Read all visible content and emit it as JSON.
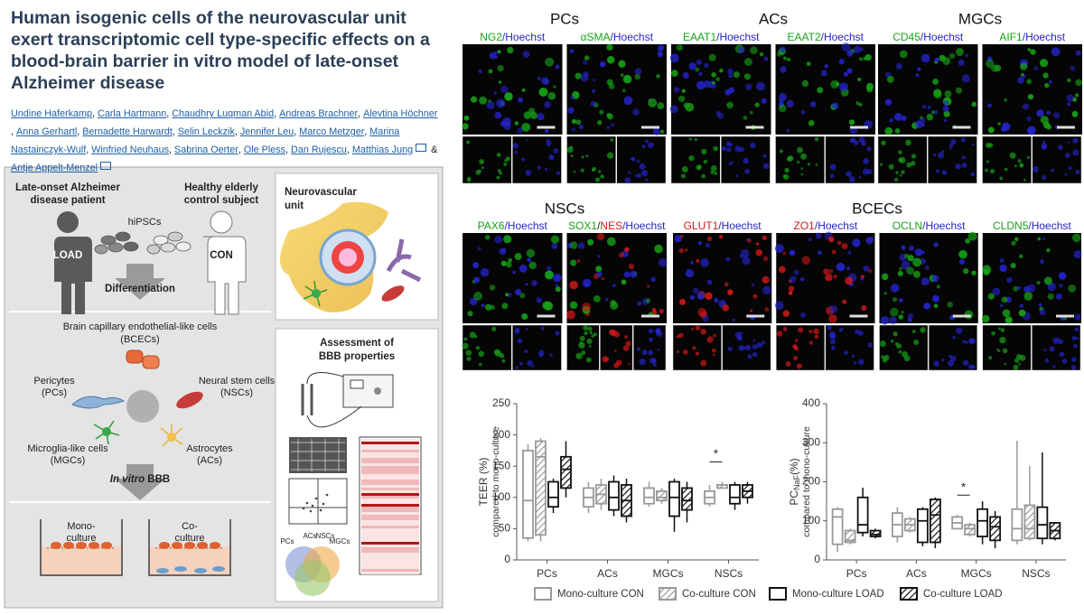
{
  "header": {
    "title": "Human isogenic cells of the neurovascular unit exert transcriptomic cell type-specific effects on a blood-brain barrier in vitro model of late-onset Alzheimer disease",
    "authors": [
      "Undine Haferkamp",
      "Carla Hartmann",
      "Chaudhry Luqman Abid",
      "Andreas Brachner",
      "Alevtina Höchner",
      "Anna Gerhartl",
      "Bernadette Harwardt",
      "Selin Leckzik",
      "Jennifer Leu",
      "Marco Metzger",
      "Marina Nastainczyk-Wulf",
      "Winfried Neuhaus",
      "Sabrina Oerter",
      "Ole Pless",
      "Dan Rujescu",
      "Matthias Jung",
      "Antje Appelt-Menzel"
    ]
  },
  "graphical_abstract": {
    "patient": [
      "Late-onset Alzheimer",
      "disease patient"
    ],
    "control": [
      "Healthy elderly",
      "control subject"
    ],
    "ipsc": "hiPSCs",
    "load_tag": "LOAD",
    "con_tag": "CON",
    "differentiation": "Differentiation",
    "bcecs": [
      "Brain capillary endothelial-like cells",
      "(BCECs)"
    ],
    "pcs": [
      "Pericytes",
      "(PCs)"
    ],
    "nscs": [
      "Neural stem cells",
      "(NSCs)"
    ],
    "mgcs": [
      "Microglia-like cells",
      "(MGCs)"
    ],
    "acs": [
      "Astrocytes",
      "(ACs)"
    ],
    "bbb": [
      {
        "text": "In vitro",
        "italic": true
      },
      {
        "text": " BBB"
      }
    ],
    "mono": [
      "Mono-",
      "culture"
    ],
    "co": [
      "Co-",
      "culture"
    ],
    "nvu": [
      "Neurovascular",
      "unit"
    ],
    "assessment": [
      "Assessment of",
      "BBB properties"
    ],
    "venn": [
      "PCs",
      "ACs",
      "NSCs",
      "MGCs"
    ]
  },
  "micrographs": [
    [
      {
        "title": "PCs",
        "images": [
          {
            "label": [
              {
                "text": "NG2",
                "color": "#17a317"
              },
              {
                "text": "/Hoechst",
                "color": "#2424c8"
              }
            ]
          },
          {
            "label": [
              {
                "text": "αSMA",
                "color": "#17a317"
              },
              {
                "text": "/Hoechst",
                "color": "#2424c8"
              }
            ]
          }
        ]
      },
      {
        "title": "ACs",
        "images": [
          {
            "label": [
              {
                "text": "EAAT1",
                "color": "#17a317"
              },
              {
                "text": "/Hoechst",
                "color": "#2424c8"
              }
            ]
          },
          {
            "label": [
              {
                "text": "EAAT2",
                "color": "#17a317"
              },
              {
                "text": "/Hoechst",
                "color": "#2424c8"
              }
            ]
          }
        ]
      },
      {
        "title": "MGCs",
        "images": [
          {
            "label": [
              {
                "text": "CD45",
                "color": "#17a317"
              },
              {
                "text": "/Hoechst",
                "color": "#2424c8"
              }
            ]
          },
          {
            "label": [
              {
                "text": "AIF1",
                "color": "#17a317"
              },
              {
                "text": "/Hoechst",
                "color": "#2424c8"
              }
            ]
          }
        ]
      }
    ],
    [
      {
        "title": "NSCs",
        "images": [
          {
            "label": [
              {
                "text": "PAX6",
                "color": "#17a317"
              },
              {
                "text": "/Hoechst",
                "color": "#2424c8"
              }
            ]
          },
          {
            "label": [
              {
                "text": "SOX1",
                "color": "#17a317"
              },
              {
                "text": "/",
                "color": "#222222"
              },
              {
                "text": "NES",
                "color": "#d01818"
              },
              {
                "text": "/Hoechst",
                "color": "#2424c8"
              }
            ]
          }
        ]
      },
      {
        "title": "BCECs",
        "images": [
          {
            "label": [
              {
                "text": "GLUT1",
                "color": "#d01818"
              },
              {
                "text": "/Hoechst",
                "color": "#2424c8"
              }
            ]
          },
          {
            "label": [
              {
                "text": "ZO1",
                "color": "#d01818"
              },
              {
                "text": "/Hoechst",
                "color": "#2424c8"
              }
            ]
          },
          {
            "label": [
              {
                "text": "OCLN",
                "color": "#17a317"
              },
              {
                "text": "/Hoechst",
                "color": "#2424c8"
              }
            ]
          },
          {
            "label": [
              {
                "text": "CLDN5",
                "color": "#17a317"
              },
              {
                "text": "/Hoechst",
                "color": "#2424c8"
              }
            ]
          }
        ]
      }
    ]
  ],
  "legend": [
    {
      "name": "Mono-culture CON",
      "color": "#999999",
      "hatch": false
    },
    {
      "name": "Co-culture CON",
      "color": "#999999",
      "hatch": true
    },
    {
      "name": "Mono-culture LOAD",
      "color": "#111111",
      "hatch": false
    },
    {
      "name": "Co-culture LOAD",
      "color": "#111111",
      "hatch": true
    }
  ],
  "charts": [
    {
      "type": "box",
      "y_label": [
        {
          "text": "TEER (%)"
        }
      ],
      "y_sublabel": "compared to mono-culture",
      "categories": [
        "PCs",
        "ACs",
        "MGCs",
        "NSCs"
      ],
      "ylim": [
        0,
        250
      ],
      "yticks": [
        0,
        50,
        100,
        150,
        200,
        250
      ],
      "annotation": {
        "text": "*",
        "category": "NSCs"
      },
      "data": [
        [
          {
            "min": 30,
            "q1": 35,
            "median": 95,
            "q3": 175,
            "max": 185
          },
          {
            "min": 75,
            "q1": 85,
            "median": 100,
            "q3": 115,
            "max": 125
          },
          {
            "min": 85,
            "q1": 90,
            "median": 100,
            "q3": 115,
            "max": 125
          },
          {
            "min": 85,
            "q1": 90,
            "median": 100,
            "q3": 110,
            "max": 120
          }
        ],
        [
          {
            "min": 30,
            "q1": 40,
            "median": 165,
            "q3": 190,
            "max": 195
          },
          {
            "min": 80,
            "q1": 90,
            "median": 105,
            "q3": 120,
            "max": 130
          },
          {
            "min": 90,
            "q1": 95,
            "median": 100,
            "q3": 110,
            "max": 115
          },
          {
            "min": 115,
            "q1": 115,
            "median": 120,
            "q3": 120,
            "max": 125
          }
        ],
        [
          {
            "min": 75,
            "q1": 85,
            "median": 100,
            "q3": 125,
            "max": 130
          },
          {
            "min": 70,
            "q1": 80,
            "median": 100,
            "q3": 125,
            "max": 135
          },
          {
            "min": 45,
            "q1": 70,
            "median": 100,
            "q3": 125,
            "max": 130
          },
          {
            "min": 80,
            "q1": 90,
            "median": 100,
            "q3": 120,
            "max": 125
          }
        ],
        [
          {
            "min": 100,
            "q1": 115,
            "median": 145,
            "q3": 165,
            "max": 190
          },
          {
            "min": 60,
            "q1": 70,
            "median": 95,
            "q3": 120,
            "max": 130
          },
          {
            "min": 60,
            "q1": 80,
            "median": 95,
            "q3": 115,
            "max": 125
          },
          {
            "min": 90,
            "q1": 100,
            "median": 110,
            "q3": 120,
            "max": 125
          }
        ]
      ]
    },
    {
      "type": "box",
      "y_label": [
        {
          "text": "PC"
        },
        {
          "text": "NaF",
          "sub": true
        },
        {
          "text": "(%)"
        }
      ],
      "y_sublabel": "compared to mono-culture",
      "categories": [
        "PCs",
        "ACs",
        "MGCs",
        "NSCs"
      ],
      "ylim": [
        0,
        400
      ],
      "yticks": [
        0,
        100,
        200,
        300,
        400
      ],
      "annotation": {
        "text": "*",
        "category": "MGCs"
      },
      "data": [
        [
          {
            "min": 20,
            "q1": 40,
            "median": 110,
            "q3": 130,
            "max": 135
          },
          {
            "min": 45,
            "q1": 60,
            "median": 90,
            "q3": 120,
            "max": 135
          },
          {
            "min": 80,
            "q1": 80,
            "median": 95,
            "q3": 110,
            "max": 115
          },
          {
            "min": 40,
            "q1": 50,
            "median": 80,
            "q3": 130,
            "max": 305
          }
        ],
        [
          {
            "min": 40,
            "q1": 45,
            "median": 50,
            "q3": 75,
            "max": 80
          },
          {
            "min": 70,
            "q1": 75,
            "median": 90,
            "q3": 105,
            "max": 110
          },
          {
            "min": 60,
            "q1": 65,
            "median": 80,
            "q3": 90,
            "max": 95
          },
          {
            "min": 50,
            "q1": 55,
            "median": 80,
            "q3": 140,
            "max": 240
          }
        ],
        [
          {
            "min": 60,
            "q1": 70,
            "median": 90,
            "q3": 160,
            "max": 185
          },
          {
            "min": 35,
            "q1": 45,
            "median": 100,
            "q3": 130,
            "max": 135
          },
          {
            "min": 40,
            "q1": 60,
            "median": 100,
            "q3": 130,
            "max": 150
          },
          {
            "min": 40,
            "q1": 55,
            "median": 90,
            "q3": 135,
            "max": 275
          }
        ],
        [
          {
            "min": 55,
            "q1": 60,
            "median": 65,
            "q3": 75,
            "max": 80
          },
          {
            "min": 30,
            "q1": 45,
            "median": 115,
            "q3": 155,
            "max": 160
          },
          {
            "min": 30,
            "q1": 50,
            "median": 85,
            "q3": 110,
            "max": 125
          },
          {
            "min": 50,
            "q1": 55,
            "median": 75,
            "q3": 95,
            "max": 95
          }
        ]
      ]
    }
  ]
}
